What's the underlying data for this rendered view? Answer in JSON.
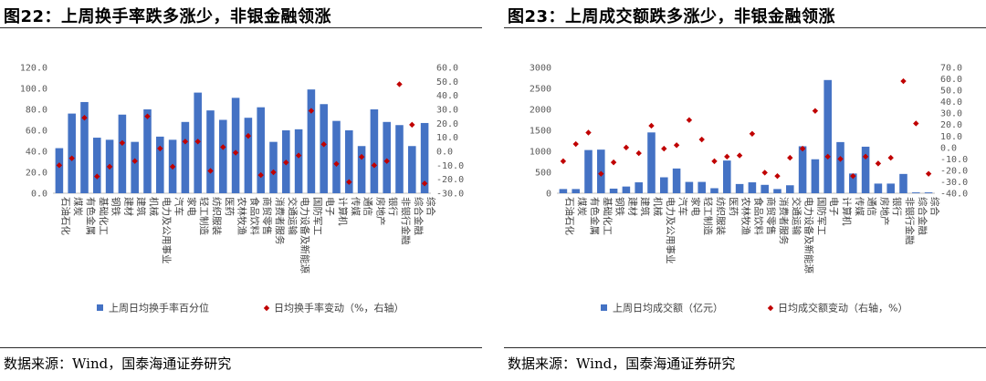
{
  "colors": {
    "bar": "#4472C4",
    "marker": "#C00000",
    "axis": "#bfbfbf",
    "tick_text": "#595959"
  },
  "panels": [
    {
      "title": "图22：上周换手率跌多涨少，非银金融领涨",
      "source": "数据来源：Wind，国泰海通证券研究",
      "chart_data": {
        "type": "bar+scatter",
        "categories": [
          "石油石化",
          "煤炭",
          "有色金属",
          "基础化工",
          "钢铁",
          "建材",
          "建筑",
          "机械",
          "电力及公用事业",
          "汽车",
          "家电",
          "轻工制造",
          "纺织服装",
          "医药",
          "农林牧渔",
          "食品饮料",
          "商贸零售",
          "消费者服务",
          "交通运输",
          "电力设备及新能源",
          "国防军工",
          "电子",
          "计算机",
          "传媒",
          "通信",
          "房地产",
          "银行",
          "非银行金融",
          "综合金融",
          "综合"
        ],
        "series": [
          {
            "name": "上周日均换手率百分位",
            "type": "bar",
            "axis": "left",
            "values": [
              43,
              76,
              87,
              53,
              51,
              75,
              49,
              80,
              54,
              51,
              68,
              96,
              79,
              70,
              91,
              72,
              82,
              49,
              60,
              61,
              99,
              85,
              69,
              60,
              45,
              80,
              68,
              65,
              45,
              67
            ]
          },
          {
            "name": "日均换手率变动（%，右轴）",
            "type": "scatter",
            "axis": "right",
            "values": [
              -10,
              -5,
              24,
              -18,
              -11,
              6,
              -7,
              25,
              2,
              -11,
              7,
              7,
              -14,
              3,
              -1,
              11,
              -17,
              -15,
              -8,
              -3,
              29,
              5,
              -9,
              -22,
              -4,
              -10,
              -7,
              48,
              19,
              -23
            ]
          }
        ],
        "left_axis": {
          "min": 0,
          "max": 120,
          "step": 20,
          "decimals": 1
        },
        "right_axis": {
          "min": -30,
          "max": 60,
          "step": 10,
          "decimals": 1
        },
        "legend": [
          "上周日均换手率百分位",
          "日均换手率变动（%，右轴）"
        ],
        "legend_position": "bottom"
      }
    },
    {
      "title": "图23：上周成交额跌多涨少，非银金融领涨",
      "source": "数据来源：Wind，国泰海通证券研究",
      "chart_data": {
        "type": "bar+scatter",
        "categories": [
          "石油石化",
          "煤炭",
          "有色金属",
          "基础化工",
          "钢铁",
          "建材",
          "建筑",
          "机械",
          "电力及公用事业",
          "汽车",
          "家电",
          "轻工制造",
          "纺织服装",
          "医药",
          "农林牧渔",
          "食品饮料",
          "商贸零售",
          "消费者服务",
          "交通运输",
          "电力设备及新能源",
          "国防军工",
          "电子",
          "计算机",
          "传媒",
          "通信",
          "房地产",
          "银行",
          "非银行金融",
          "综合金融",
          "综合"
        ],
        "series": [
          {
            "name": "上周日均成交额（亿元）",
            "type": "bar",
            "axis": "left",
            "values": [
              100,
              100,
              1030,
              1040,
              110,
              160,
              260,
              1450,
              380,
              590,
              270,
              270,
              120,
              780,
              220,
              260,
              200,
              100,
              190,
              1120,
              810,
              2700,
              1220,
              470,
              1110,
              230,
              230,
              460,
              20,
              20
            ]
          },
          {
            "name": "日均成交额变动（右轴，%）",
            "type": "scatter",
            "axis": "right",
            "values": [
              -12,
              3,
              13,
              -23,
              -13,
              0,
              -5,
              19,
              -1,
              2,
              24,
              7,
              -12,
              -8,
              -7,
              12,
              -22,
              -25,
              -9,
              -1,
              32,
              -8,
              -10,
              -25,
              -8,
              -14,
              -9,
              58,
              21,
              -23
            ]
          }
        ],
        "left_axis": {
          "min": 0,
          "max": 3000,
          "step": 500,
          "decimals": 0
        },
        "right_axis": {
          "min": -40,
          "max": 70,
          "step": 10,
          "decimals": 1
        },
        "legend": [
          "上周日均成交额（亿元）",
          "日均成交额变动（右轴，%）"
        ],
        "legend_position": "bottom"
      }
    }
  ]
}
